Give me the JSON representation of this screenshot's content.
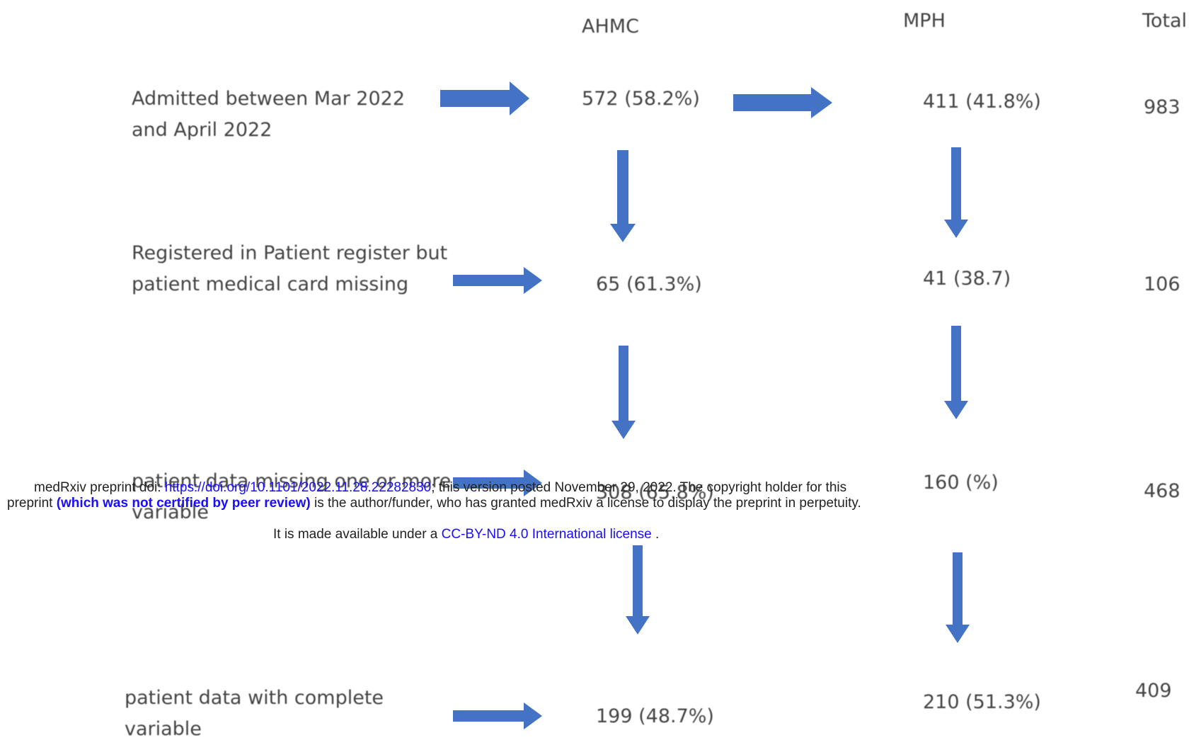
{
  "headers": {
    "col1": "AHMC",
    "col2": "MPH",
    "col3": "Total"
  },
  "rows": [
    {
      "label_line1": "Admitted between Mar 2022",
      "label_line2": "and April 2022",
      "ahmc": "572 (58.2%)",
      "mph": "411 (41.8%)",
      "total": "983"
    },
    {
      "label_line1": "Registered in Patient register but",
      "label_line2": "patient medical card missing",
      "ahmc": "65 (61.3%)",
      "mph": "41 (38.7)",
      "total": "106"
    },
    {
      "label_line1": "patient data missing one or more",
      "label_line2": "variable",
      "ahmc": "308 (65.8%)",
      "mph": "160 (%)",
      "total": "468"
    },
    {
      "label_line1": "patient data with complete",
      "label_line2": "variable",
      "ahmc": "199 (48.7%)",
      "mph": "210 (51.3%)",
      "total": "409"
    }
  ],
  "watermark": {
    "line1_prefix": "medRxiv preprint doi: ",
    "doi_link": "https://doi.org/10.1101/2022.11.28.22282830",
    "line1_suffix": "; this version posted November 29, 2022. The copyright holder for this",
    "line2_prefix": "preprint ",
    "line2_bold": "(which was not certified by peer review)",
    "line2_suffix": " is the author/funder, who has granted medRxiv a license to display the preprint in perpetuity.",
    "line3_prefix": "It is made available under a ",
    "license_link": "CC-BY-ND 4.0 International license",
    "line3_suffix": " ."
  },
  "colors": {
    "arrow": "#4472c4",
    "link": "#1a0dff"
  }
}
